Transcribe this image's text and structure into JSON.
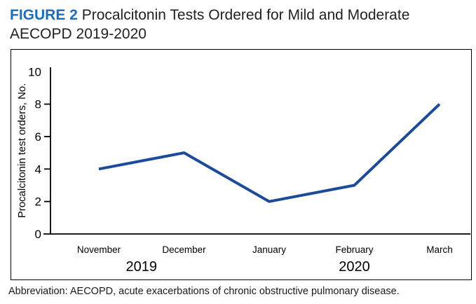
{
  "header": {
    "figure_label": "FIGURE 2",
    "title": "Procalcitonin Tests Ordered for Mild and Moderate AECOPD 2019-2020"
  },
  "footer": {
    "text": "Abbreviation: AECOPD, acute exacerbations of chronic obstructive pulmonary disease."
  },
  "colors": {
    "figure_label_blue": "#1e6db6",
    "line_blue": "#1c4c99",
    "axis_black": "#000000",
    "text_black": "#1a1a1a"
  },
  "chart_data": {
    "type": "line",
    "categories": [
      "November",
      "December",
      "January",
      "February",
      "March"
    ],
    "values": [
      4,
      5,
      2,
      3,
      8
    ],
    "series": [
      {
        "name": "Procalcitonin test orders",
        "values": [
          4,
          5,
          2,
          3,
          8
        ]
      }
    ],
    "title": "Procalcitonin Tests Ordered for Mild and Moderate AECOPD 2019-2020",
    "xlabel": "",
    "ylabel": "Procalcitonin test orders, No.",
    "ylim": [
      0,
      10
    ],
    "yticks": [
      0,
      2,
      4,
      6,
      8,
      10
    ],
    "grid": false,
    "legend_position": "none",
    "year_groups": [
      {
        "label": "2019",
        "months": [
          "November",
          "December"
        ]
      },
      {
        "label": "2020",
        "months": [
          "February"
        ]
      }
    ]
  }
}
